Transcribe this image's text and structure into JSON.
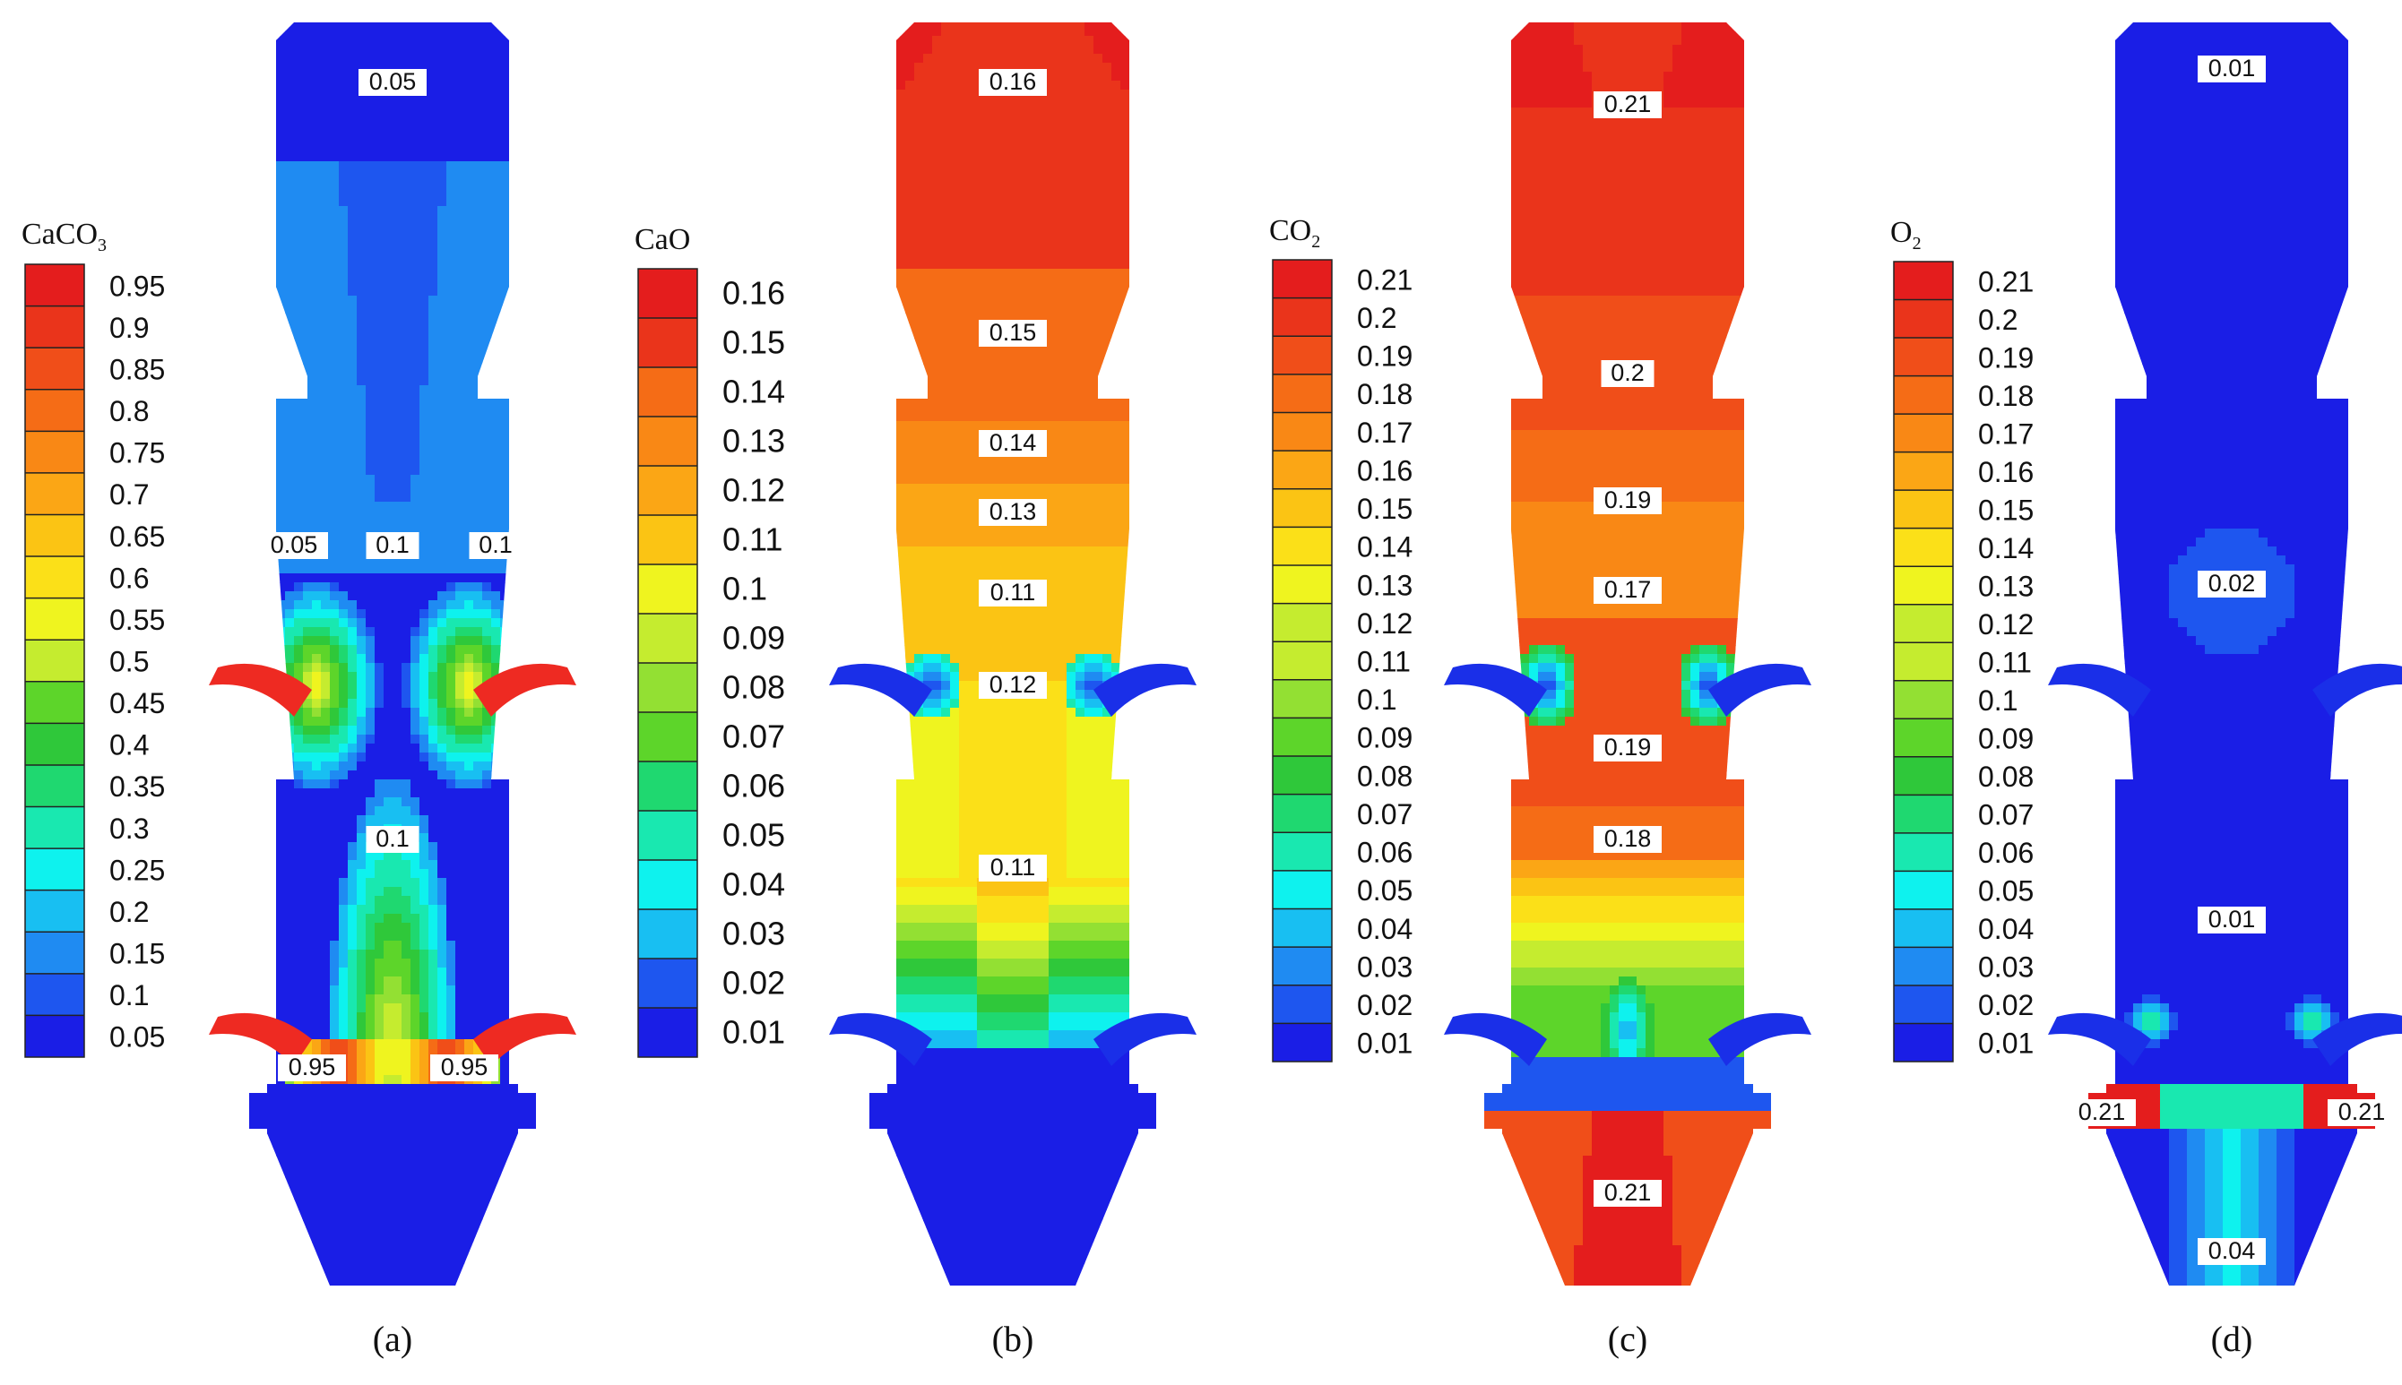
{
  "figure": {
    "panels": [
      {
        "id": "a",
        "caption": "(a)",
        "colorbar": {
          "title_main": "CaCO",
          "title_sub": "3",
          "ticks": [
            "0.95",
            "0.9",
            "0.85",
            "0.8",
            "0.75",
            "0.7",
            "0.65",
            "0.6",
            "0.55",
            "0.5",
            "0.45",
            "0.4",
            "0.35",
            "0.3",
            "0.25",
            "0.2",
            "0.15",
            "0.1",
            "0.05"
          ]
        },
        "contour_labels": [
          "0.05",
          "0.1",
          "0.05",
          "0.1",
          "0.1",
          "0.95",
          "0.95"
        ],
        "field_colors": {
          "background": "#1a2fe8",
          "inlet": "#ee2a22"
        }
      },
      {
        "id": "b",
        "caption": "(b)",
        "colorbar": {
          "title_main": "CaO",
          "title_sub": "",
          "ticks": [
            "0.16",
            "0.15",
            "0.14",
            "0.13",
            "0.12",
            "0.11",
            "0.1",
            "0.09",
            "0.08",
            "0.07",
            "0.06",
            "0.05",
            "0.04",
            "0.03",
            "0.02",
            "0.01"
          ]
        },
        "contour_labels": [
          "0.16",
          "0.15",
          "0.14",
          "0.13",
          "0.11",
          "0.12",
          "0.11"
        ],
        "field_colors": {
          "background": "#1a2fe8",
          "inlet": "#1a2fe8"
        }
      },
      {
        "id": "c",
        "caption": "(c)",
        "colorbar": {
          "title_main": "CO",
          "title_sub": "2",
          "ticks": [
            "0.21",
            "0.2",
            "0.19",
            "0.18",
            "0.17",
            "0.16",
            "0.15",
            "0.14",
            "0.13",
            "0.12",
            "0.11",
            "0.1",
            "0.09",
            "0.08",
            "0.07",
            "0.06",
            "0.05",
            "0.04",
            "0.03",
            "0.02",
            "0.01"
          ]
        },
        "contour_labels": [
          "0.21",
          "0.2",
          "0.19",
          "0.17",
          "0.19",
          "0.18",
          "0.21"
        ],
        "field_colors": {
          "background": "#1a2fe8",
          "inlet": "#1a2fe8"
        }
      },
      {
        "id": "d",
        "caption": "(d)",
        "colorbar": {
          "title_main": "O",
          "title_sub": "2",
          "ticks": [
            "0.21",
            "0.2",
            "0.19",
            "0.18",
            "0.17",
            "0.16",
            "0.15",
            "0.14",
            "0.13",
            "0.12",
            "0.11",
            "0.1",
            "0.09",
            "0.08",
            "0.07",
            "0.06",
            "0.05",
            "0.04",
            "0.03",
            "0.02",
            "0.01"
          ]
        },
        "contour_labels": [
          "0.01",
          "0.02",
          "0.01",
          "0.21",
          "0.21",
          "0.04"
        ],
        "field_colors": {
          "background": "#1a2fe8",
          "inlet": "#1a2fe8"
        }
      }
    ],
    "colormap": [
      "#1a1ee6",
      "#1e56ef",
      "#1f8bf2",
      "#18bff2",
      "#0ef2ee",
      "#19e8b0",
      "#1fd870",
      "#2fc83a",
      "#5dd52a",
      "#93e033",
      "#c5ec2f",
      "#eff41f",
      "#fbe018",
      "#fbc414",
      "#fba615",
      "#f98815",
      "#f56c16",
      "#f04e19",
      "#ea341b",
      "#e41d1d"
    ]
  }
}
